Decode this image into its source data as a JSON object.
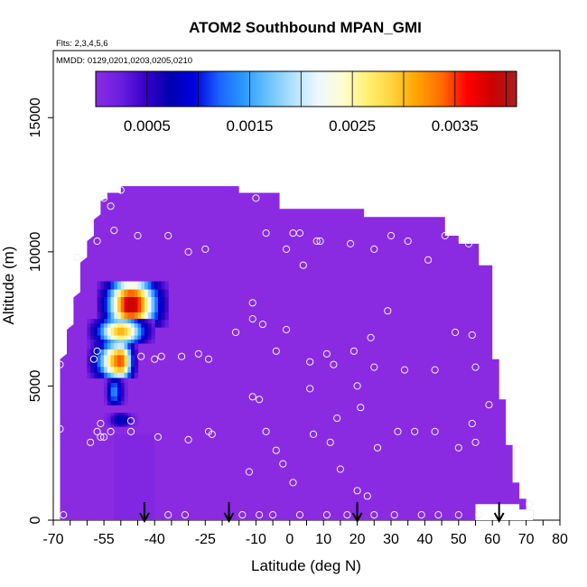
{
  "chart_data": {
    "type": "heatmap",
    "title": "ATOM2 Southbound MPAN_GMI",
    "subtitle_flights": "Flts: 2,3,4,5,6",
    "subtitle_dates": "MMDD: 0129,0201,0203,0205,0210",
    "xlabel": "Latitude (deg N)",
    "ylabel": "Altitude (m)",
    "xlim": [
      -70,
      80
    ],
    "ylim": [
      0,
      17500
    ],
    "x_tick_labels": [
      "-70",
      "-55",
      "-40",
      "-25",
      "-10",
      "0",
      "10",
      "20",
      "30",
      "40",
      "50",
      "60",
      "70",
      "80"
    ],
    "x_tick_values": [
      -70,
      -55,
      -40,
      -25,
      -10,
      0,
      10,
      20,
      30,
      40,
      50,
      60,
      70,
      80
    ],
    "y_tick_labels": [
      "0",
      "5000",
      "10000",
      "15000"
    ],
    "y_tick_values": [
      0,
      5000,
      10000,
      15000
    ],
    "colorbar": {
      "min": 0.0,
      "max": 0.0041,
      "tick_labels": [
        "0.0005",
        "0.0015",
        "0.0025",
        "0.0035"
      ],
      "tick_values": [
        0.0005,
        0.0015,
        0.0025,
        0.0035
      ],
      "colors": [
        "#8a2be2",
        "#6a1fe0",
        "#3a00c8",
        "#0000b0",
        "#0000e0",
        "#1a64ff",
        "#2a9bff",
        "#6cc4ff",
        "#b4e2ff",
        "#eef8ff",
        "#fffdd0",
        "#fff070",
        "#ffd23a",
        "#ffa200",
        "#ff6a00",
        "#ff0000",
        "#cc0000",
        "#a82020"
      ]
    },
    "background_value": 0.0,
    "coverage_outline": [
      [
        -68,
        200
      ],
      [
        -68,
        6000
      ],
      [
        -66,
        6200
      ],
      [
        -66,
        7100
      ],
      [
        -64,
        7300
      ],
      [
        -64,
        8300
      ],
      [
        -62,
        8500
      ],
      [
        -62,
        9600
      ],
      [
        -60,
        9800
      ],
      [
        -60,
        10400
      ],
      [
        -58,
        10600
      ],
      [
        -58,
        11200
      ],
      [
        -56,
        11400
      ],
      [
        -56,
        11900
      ],
      [
        -54,
        12000
      ],
      [
        -54,
        12200
      ],
      [
        -50,
        12200
      ],
      [
        -50,
        12450
      ],
      [
        -15,
        12450
      ],
      [
        -15,
        12200
      ],
      [
        -3,
        12200
      ],
      [
        -3,
        11600
      ],
      [
        22,
        11600
      ],
      [
        22,
        11300
      ],
      [
        46,
        11300
      ],
      [
        46,
        10600
      ],
      [
        50,
        10600
      ],
      [
        50,
        10300
      ],
      [
        56,
        10300
      ],
      [
        56,
        9500
      ],
      [
        60,
        9500
      ],
      [
        60,
        6000
      ],
      [
        62,
        6000
      ],
      [
        62,
        4500
      ],
      [
        64,
        4500
      ],
      [
        64,
        2800
      ],
      [
        66,
        2800
      ],
      [
        66,
        1400
      ],
      [
        68,
        1400
      ],
      [
        68,
        800
      ],
      [
        70,
        800
      ],
      [
        70,
        400
      ],
      [
        72,
        400
      ],
      [
        72,
        0
      ],
      [
        -68,
        0
      ]
    ],
    "white_gaps": [
      [
        [
          55,
          0
        ],
        [
          72,
          0
        ],
        [
          72,
          400
        ],
        [
          68,
          400
        ],
        [
          68,
          600
        ],
        [
          55,
          600
        ]
      ]
    ],
    "plumes": [
      {
        "lat_range": [
          -57,
          -36
        ],
        "alt_range": [
          7200,
          8900
        ],
        "peak_lat": -47,
        "peak_value": 0.004
      },
      {
        "lat_range": [
          -60,
          -40
        ],
        "alt_range": [
          6600,
          7500
        ],
        "peak_lat": -50,
        "peak_value": 0.0031
      },
      {
        "lat_range": [
          -60,
          -45
        ],
        "alt_range": [
          5300,
          6600
        ],
        "peak_lat": -50,
        "peak_value": 0.0035
      },
      {
        "lat_range": [
          -55,
          -48
        ],
        "alt_range": [
          4300,
          5300
        ],
        "peak_lat": -52,
        "peak_value": 0.0014
      },
      {
        "lat_range": [
          -55,
          -45
        ],
        "alt_range": [
          3500,
          4000
        ],
        "peak_lat": -50,
        "peak_value": 0.0009
      }
    ],
    "sample_points": [
      [
        -50,
        12300
      ],
      [
        -53,
        11700
      ],
      [
        -55,
        12000
      ],
      [
        -10,
        12000
      ],
      [
        -52,
        10800
      ],
      [
        -57,
        10400
      ],
      [
        -63,
        9800
      ],
      [
        -45,
        10600
      ],
      [
        -36,
        10600
      ],
      [
        -30,
        10000
      ],
      [
        -25,
        10100
      ],
      [
        -7,
        10700
      ],
      [
        1,
        10700
      ],
      [
        3,
        10700
      ],
      [
        -1,
        10100
      ],
      [
        8,
        10400
      ],
      [
        9,
        10400
      ],
      [
        18,
        10300
      ],
      [
        25,
        10100
      ],
      [
        30,
        10600
      ],
      [
        35,
        10400
      ],
      [
        41,
        9700
      ],
      [
        46,
        10600
      ],
      [
        53,
        10300
      ],
      [
        4,
        9500
      ],
      [
        -11,
        8100
      ],
      [
        -11,
        7500
      ],
      [
        -8,
        7300
      ],
      [
        -16,
        7000
      ],
      [
        -1,
        7100
      ],
      [
        11,
        6200
      ],
      [
        19,
        6300
      ],
      [
        24,
        6800
      ],
      [
        29,
        7800
      ],
      [
        49,
        7000
      ],
      [
        54,
        6900
      ],
      [
        -4,
        6300
      ],
      [
        6,
        5900
      ],
      [
        13,
        5800
      ],
      [
        25,
        5700
      ],
      [
        34,
        5600
      ],
      [
        43,
        5600
      ],
      [
        55,
        5700
      ],
      [
        -32,
        6100
      ],
      [
        -38,
        6100
      ],
      [
        -40,
        6000
      ],
      [
        -44,
        6100
      ],
      [
        -27,
        6200
      ],
      [
        -24,
        6000
      ],
      [
        -57,
        6300
      ],
      [
        -58,
        6000
      ],
      [
        -68,
        5800
      ],
      [
        -11,
        4600
      ],
      [
        -9,
        4500
      ],
      [
        6,
        4900
      ],
      [
        20,
        5000
      ],
      [
        21,
        4200
      ],
      [
        14,
        3800
      ],
      [
        54,
        3600
      ],
      [
        59,
        4300
      ],
      [
        -47,
        3700
      ],
      [
        -47,
        3300
      ],
      [
        -56,
        3600
      ],
      [
        -57,
        3300
      ],
      [
        -53,
        3300
      ],
      [
        -56,
        3100
      ],
      [
        -59,
        2900
      ],
      [
        -55,
        3100
      ],
      [
        -39,
        3100
      ],
      [
        -30,
        3000
      ],
      [
        -24,
        3300
      ],
      [
        -23,
        3200
      ],
      [
        -7,
        3300
      ],
      [
        7,
        3200
      ],
      [
        12,
        2900
      ],
      [
        26,
        2700
      ],
      [
        32,
        3300
      ],
      [
        37,
        3300
      ],
      [
        43,
        3300
      ],
      [
        50,
        2700
      ],
      [
        55,
        2900
      ],
      [
        -4,
        2600
      ],
      [
        -2,
        2100
      ],
      [
        15,
        1900
      ],
      [
        -12,
        1800
      ],
      [
        1,
        1400
      ],
      [
        20,
        1100
      ],
      [
        23,
        900
      ],
      [
        -68,
        3400
      ],
      [
        -67,
        200
      ],
      [
        -36,
        200
      ],
      [
        -31,
        200
      ],
      [
        -14,
        200
      ],
      [
        -9,
        200
      ],
      [
        -5,
        200
      ],
      [
        3,
        200
      ],
      [
        11,
        200
      ],
      [
        17,
        200
      ],
      [
        25,
        200
      ],
      [
        31,
        200
      ],
      [
        39,
        200
      ],
      [
        44,
        200
      ],
      [
        50,
        200
      ],
      [
        56,
        200
      ],
      [
        71,
        600
      ]
    ],
    "arrows_at_latitude": [
      -43,
      -18,
      20,
      62
    ]
  }
}
